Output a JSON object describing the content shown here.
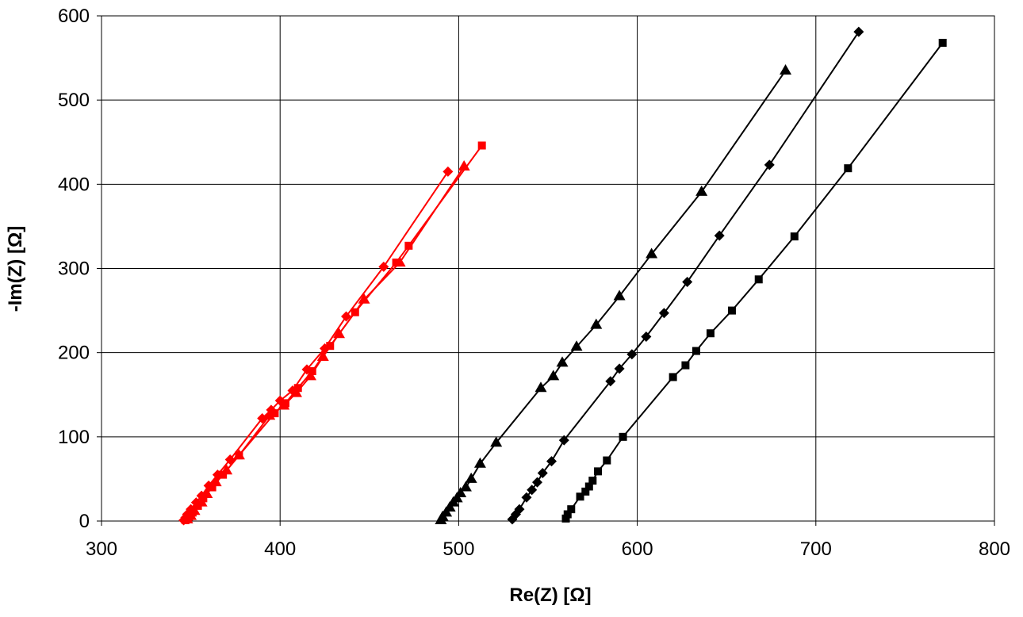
{
  "chart_data": {
    "type": "scatter",
    "title": "",
    "xlabel": "Re(Z) [Ω]",
    "ylabel": "-Im(Z) [Ω]",
    "xlim": [
      300,
      800
    ],
    "ylim": [
      0,
      600
    ],
    "xticks": [
      300,
      400,
      500,
      600,
      700,
      800
    ],
    "yticks": [
      0,
      100,
      200,
      300,
      400,
      500,
      600
    ],
    "x_tick_labels": [
      "300",
      "400",
      "500",
      "600",
      "700",
      "800"
    ],
    "y_tick_labels": [
      "0",
      "100",
      "200",
      "300",
      "400",
      "500",
      "600"
    ],
    "grid": true,
    "legend": "none",
    "series": [
      {
        "color": "#ff0000",
        "marker": "diamond",
        "points": [
          [
            346,
            1
          ],
          [
            347,
            4
          ],
          [
            348,
            8
          ],
          [
            350,
            14
          ],
          [
            353,
            22
          ],
          [
            356,
            30
          ],
          [
            360,
            42
          ],
          [
            365,
            55
          ],
          [
            372,
            73
          ],
          [
            390,
            122
          ],
          [
            395,
            132
          ],
          [
            400,
            143
          ],
          [
            407,
            155
          ],
          [
            415,
            180
          ],
          [
            425,
            205
          ],
          [
            437,
            243
          ],
          [
            458,
            302
          ],
          [
            494,
            415
          ]
        ]
      },
      {
        "color": "#ff0000",
        "marker": "square",
        "points": [
          [
            347,
            1
          ],
          [
            349,
            5
          ],
          [
            351,
            10
          ],
          [
            354,
            18
          ],
          [
            357,
            27
          ],
          [
            362,
            40
          ],
          [
            368,
            55
          ],
          [
            377,
            78
          ],
          [
            397,
            128
          ],
          [
            403,
            140
          ],
          [
            410,
            158
          ],
          [
            418,
            178
          ],
          [
            428,
            208
          ],
          [
            442,
            248
          ],
          [
            465,
            307
          ],
          [
            472,
            327
          ],
          [
            513,
            446
          ]
        ]
      },
      {
        "color": "#ff0000",
        "marker": "triangle",
        "points": [
          [
            348,
            2
          ],
          [
            350,
            6
          ],
          [
            352,
            12
          ],
          [
            356,
            22
          ],
          [
            359,
            32
          ],
          [
            364,
            46
          ],
          [
            370,
            60
          ],
          [
            377,
            78
          ],
          [
            394,
            125
          ],
          [
            402,
            137
          ],
          [
            409,
            152
          ],
          [
            417,
            172
          ],
          [
            424,
            195
          ],
          [
            433,
            222
          ],
          [
            447,
            263
          ],
          [
            467,
            307
          ],
          [
            503,
            421
          ]
        ]
      },
      {
        "color": "#000000",
        "marker": "triangle",
        "points": [
          [
            490,
            1
          ],
          [
            491,
            5
          ],
          [
            493,
            10
          ],
          [
            495,
            16
          ],
          [
            497,
            22
          ],
          [
            499,
            27
          ],
          [
            501,
            33
          ],
          [
            504,
            40
          ],
          [
            507,
            50
          ],
          [
            512,
            68
          ],
          [
            521,
            93
          ],
          [
            546,
            158
          ],
          [
            553,
            172
          ],
          [
            558,
            188
          ],
          [
            566,
            207
          ],
          [
            577,
            233
          ],
          [
            590,
            267
          ],
          [
            608,
            317
          ],
          [
            636,
            391
          ],
          [
            683,
            535
          ]
        ]
      },
      {
        "color": "#000000",
        "marker": "diamond",
        "points": [
          [
            530,
            2
          ],
          [
            532,
            8
          ],
          [
            534,
            14
          ],
          [
            538,
            28
          ],
          [
            541,
            37
          ],
          [
            544,
            46
          ],
          [
            547,
            57
          ],
          [
            552,
            71
          ],
          [
            559,
            96
          ],
          [
            585,
            166
          ],
          [
            590,
            181
          ],
          [
            597,
            198
          ],
          [
            605,
            219
          ],
          [
            615,
            247
          ],
          [
            628,
            284
          ],
          [
            646,
            339
          ],
          [
            674,
            423
          ],
          [
            724,
            581
          ]
        ]
      },
      {
        "color": "#000000",
        "marker": "square",
        "points": [
          [
            560,
            3
          ],
          [
            561,
            8
          ],
          [
            563,
            14
          ],
          [
            568,
            29
          ],
          [
            571,
            35
          ],
          [
            573,
            41
          ],
          [
            575,
            48
          ],
          [
            578,
            59
          ],
          [
            583,
            72
          ],
          [
            592,
            100
          ],
          [
            620,
            171
          ],
          [
            627,
            185
          ],
          [
            633,
            202
          ],
          [
            641,
            223
          ],
          [
            653,
            250
          ],
          [
            668,
            287
          ],
          [
            688,
            338
          ],
          [
            718,
            419
          ],
          [
            771,
            568
          ]
        ]
      }
    ]
  }
}
